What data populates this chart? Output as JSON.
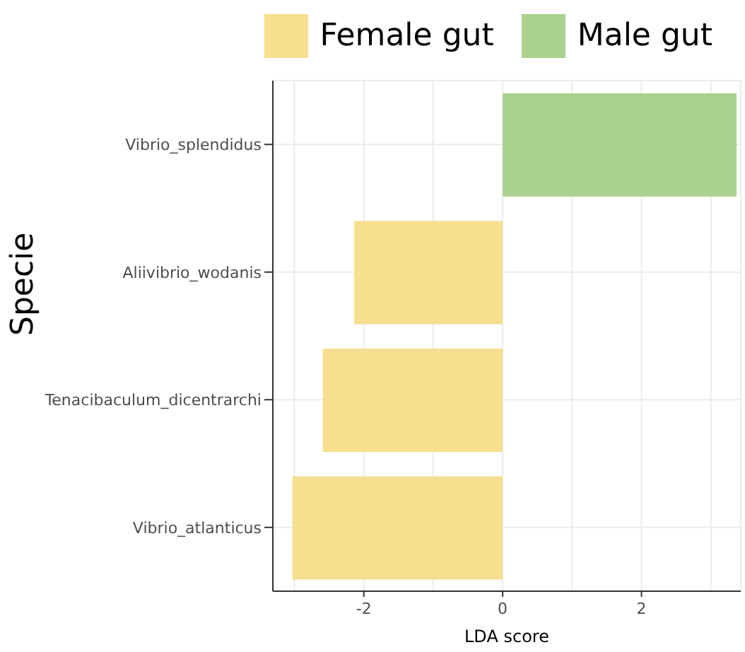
{
  "chart_data": {
    "type": "bar",
    "orientation": "horizontal",
    "stacked": true,
    "xlabel": "LDA score",
    "ylabel": "Specie",
    "categories": [
      "Vibrio_splendidus",
      "Aliivibrio_wodanis",
      "Tenacibaculum_dicentrarchi",
      "Vibrio_atlanticus"
    ],
    "series": [
      {
        "name": "Female gut",
        "color": "#f7df90",
        "values": [
          null,
          -2.14,
          -2.59,
          -3.03
        ]
      },
      {
        "name": "Male gut",
        "color": "#abd18f",
        "values": [
          3.37,
          null,
          null,
          null
        ]
      }
    ],
    "xlim": [
      -3.31,
      3.43
    ],
    "xticks": [
      {
        "value": -3,
        "label": null
      },
      -2,
      {
        "value": -1,
        "label": null
      },
      0,
      {
        "value": 1,
        "label": null
      },
      2,
      {
        "value": 3,
        "label": null
      }
    ],
    "grid": true,
    "legend": "top right"
  }
}
